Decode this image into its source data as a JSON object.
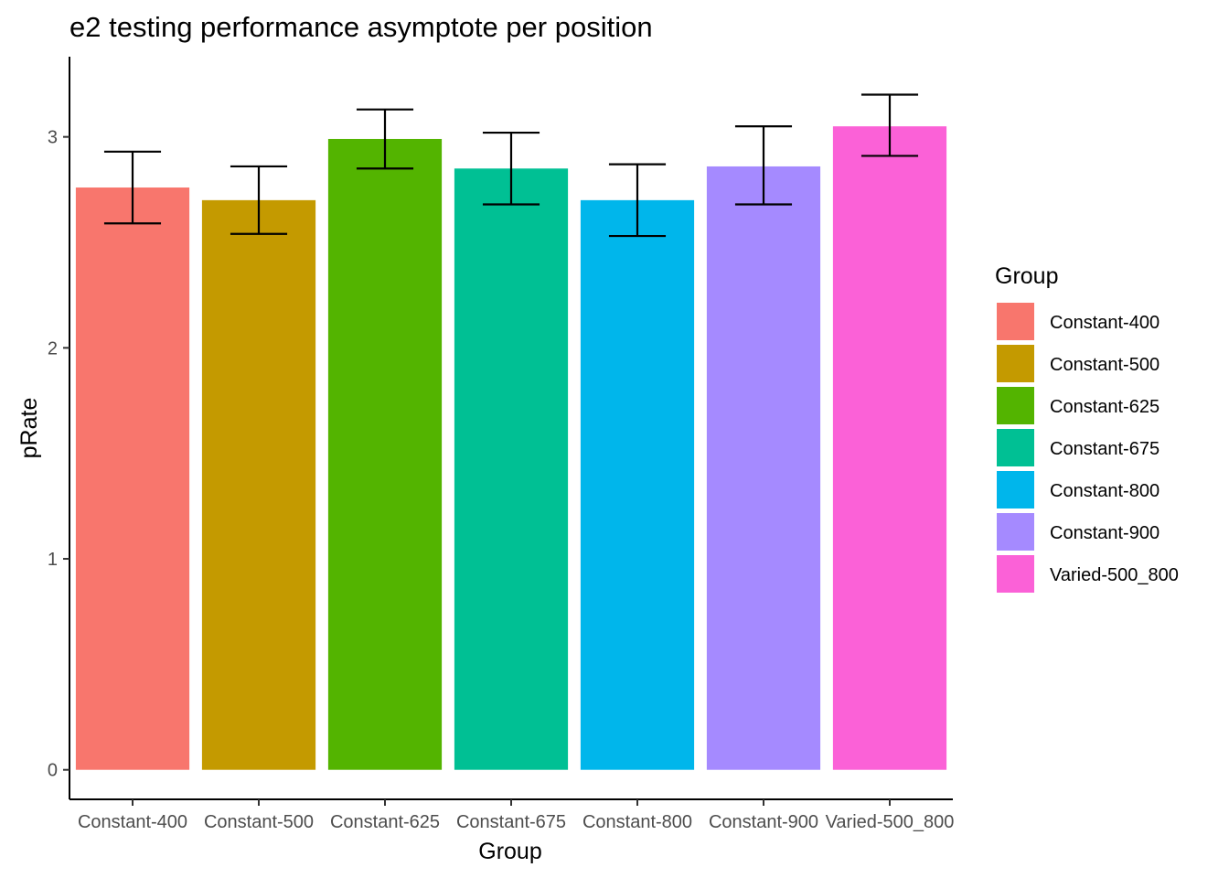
{
  "chart_data": {
    "type": "bar",
    "title": "e2 testing performance asymptote per position",
    "xlabel": "Group",
    "ylabel": "pRate",
    "categories": [
      "Constant-400",
      "Constant-500",
      "Constant-625",
      "Constant-675",
      "Constant-800",
      "Constant-900",
      "Varied-500_800"
    ],
    "values": [
      2.76,
      2.7,
      2.99,
      2.85,
      2.7,
      2.86,
      3.05
    ],
    "error_bars": {
      "lower": [
        2.59,
        2.54,
        2.85,
        2.68,
        2.53,
        2.68,
        2.91
      ],
      "upper": [
        2.93,
        2.86,
        3.13,
        3.02,
        2.87,
        3.05,
        3.2
      ]
    },
    "colors": [
      "#F8766D",
      "#C49A00",
      "#53B400",
      "#00C094",
      "#00B6EB",
      "#A58AFF",
      "#FB61D7"
    ],
    "ylim": [
      -0.14,
      3.38
    ],
    "yticks": [
      0,
      1,
      2,
      3
    ],
    "grid": false,
    "legend": {
      "title": "Group",
      "placement": "right",
      "entries": [
        "Constant-400",
        "Constant-500",
        "Constant-625",
        "Constant-675",
        "Constant-800",
        "Constant-900",
        "Varied-500_800"
      ]
    }
  }
}
